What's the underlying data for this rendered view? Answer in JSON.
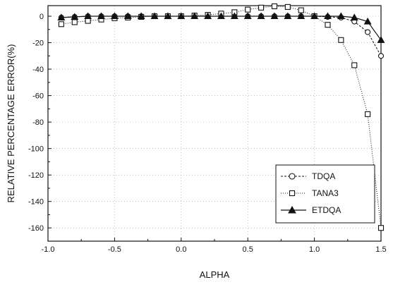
{
  "chart_data": {
    "type": "line",
    "title": "",
    "xlabel": "ALPHA",
    "ylabel": "RELATIVE PERCENTAGE ERROR(%)",
    "xlim": [
      -1.0,
      1.5
    ],
    "ylim": [
      -170,
      8
    ],
    "xticks": [
      -1.0,
      -0.5,
      0.0,
      0.5,
      1.0,
      1.5
    ],
    "xtick_labels": [
      "-1.0",
      "-0.5",
      "0.0",
      "0.5",
      "1.0",
      "1.5"
    ],
    "yticks": [
      0,
      -20,
      -40,
      -60,
      -80,
      -100,
      -120,
      -140,
      -160
    ],
    "ytick_labels": [
      "0",
      "-20",
      "-40",
      "-60",
      "-80",
      "-100",
      "-120",
      "-140",
      "-160"
    ],
    "grid": true,
    "legend_position": "bottom-right",
    "series": [
      {
        "name": "TDQA",
        "marker": "circle",
        "line_style": "dashed",
        "color": "#111111",
        "x": [
          -0.9,
          -0.8,
          -0.7,
          -0.6,
          -0.5,
          -0.4,
          -0.3,
          -0.2,
          -0.1,
          0.0,
          0.1,
          0.2,
          0.3,
          0.4,
          0.5,
          0.6,
          0.7,
          0.8,
          0.9,
          1.0,
          1.1,
          1.2,
          1.3,
          1.4,
          1.5
        ],
        "y": [
          -1,
          -0.5,
          0,
          0,
          0,
          0,
          0,
          0,
          0,
          0,
          0,
          0,
          0,
          0,
          0,
          0,
          0,
          0,
          0,
          0,
          -0.5,
          -1,
          -4,
          -12,
          -30
        ]
      },
      {
        "name": "TANA3",
        "marker": "square",
        "line_style": "dotted",
        "color": "#111111",
        "x": [
          -0.9,
          -0.8,
          -0.7,
          -0.6,
          -0.5,
          -0.4,
          -0.3,
          -0.2,
          -0.1,
          0.0,
          0.1,
          0.2,
          0.3,
          0.4,
          0.5,
          0.6,
          0.7,
          0.8,
          0.9,
          1.0,
          1.1,
          1.2,
          1.3,
          1.4,
          1.5
        ],
        "y": [
          -6,
          -4.5,
          -3.5,
          -2.5,
          -1.5,
          -1,
          -0.5,
          0,
          0,
          0,
          0.5,
          1,
          2,
          3,
          5,
          6.5,
          7.5,
          7,
          4.5,
          0,
          -6.5,
          -18,
          -37,
          -74,
          -160
        ]
      },
      {
        "name": "ETDQA",
        "marker": "triangle",
        "line_style": "solid",
        "color": "#111111",
        "x": [
          -0.9,
          -0.8,
          -0.7,
          -0.6,
          -0.5,
          -0.4,
          -0.3,
          -0.2,
          -0.1,
          0.0,
          0.1,
          0.2,
          0.3,
          0.4,
          0.5,
          0.6,
          0.7,
          0.8,
          0.9,
          1.0,
          1.1,
          1.2,
          1.3,
          1.4,
          1.5
        ],
        "y": [
          -1,
          -0.5,
          0,
          0,
          0,
          0,
          0,
          0,
          0,
          0,
          0,
          0,
          0,
          0,
          0,
          0,
          0,
          0,
          0,
          0,
          0,
          0,
          -1,
          -4,
          -18
        ]
      }
    ]
  }
}
